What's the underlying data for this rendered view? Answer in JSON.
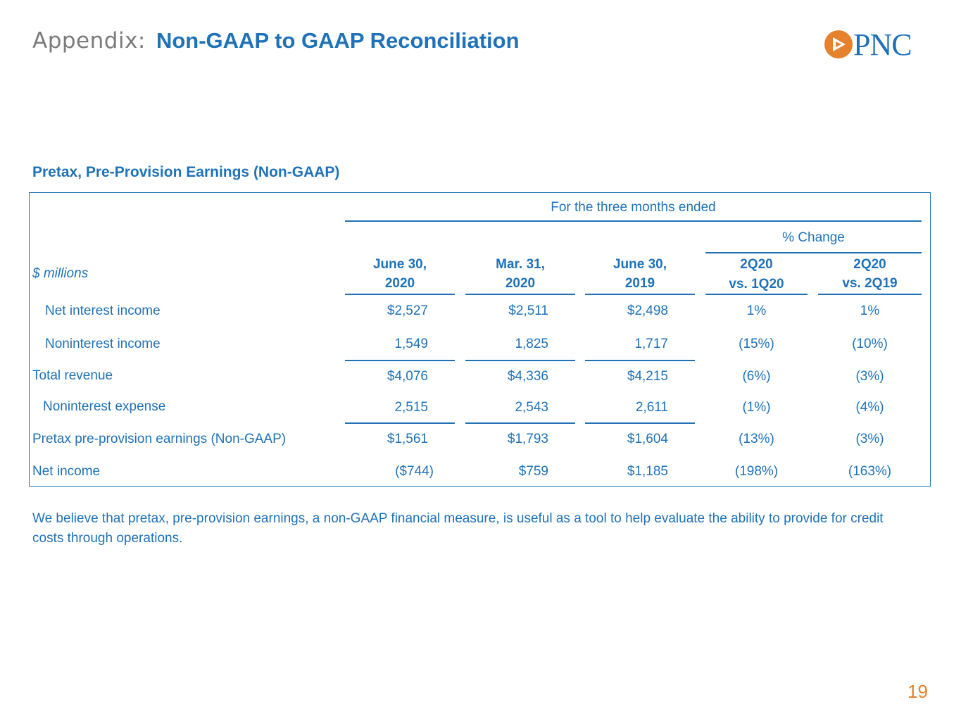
{
  "header": {
    "prefix": "Appendix:",
    "title": "Non-GAAP to GAAP Reconciliation",
    "logo_text": "PNC",
    "logo_icon": "pnc-triangle-logo-icon"
  },
  "colors": {
    "brand_blue": "#1f72b8",
    "brand_orange": "#e6822e",
    "gray": "#7b7b7b"
  },
  "section": {
    "title": "Pretax, Pre-Provision Earnings  (Non-GAAP)"
  },
  "table": {
    "period_header": "For the three months ended",
    "change_header": "% Change",
    "units_label": "$ millions",
    "columns": [
      {
        "line1": "June 30,",
        "line2": "2020"
      },
      {
        "line1": "Mar. 31,",
        "line2": "2020"
      },
      {
        "line1": "June 30,",
        "line2": "2019"
      },
      {
        "line1": "2Q20",
        "line2": "vs. 1Q20"
      },
      {
        "line1": "2Q20",
        "line2": "vs. 2Q19"
      }
    ],
    "rows": [
      {
        "label": "Net interest income",
        "v1": "$2,527",
        "v2": "$2,511",
        "v3": "$2,498",
        "p1": "1%",
        "p2": "1%"
      },
      {
        "label": "Noninterest income",
        "v1": "1,549",
        "v2": "1,825",
        "v3": "1,717",
        "p1": "(15%)",
        "p2": "(10%)"
      },
      {
        "label": "Total revenue",
        "v1": "$4,076",
        "v2": "$4,336",
        "v3": "$4,215",
        "p1": "(6%)",
        "p2": "(3%)"
      },
      {
        "label": "Noninterest expense",
        "v1": "2,515",
        "v2": "2,543",
        "v3": "2,611",
        "p1": "(1%)",
        "p2": "(4%)"
      },
      {
        "label": "Pretax pre-provision earnings (Non-GAAP)",
        "v1": "$1,561",
        "v2": "$1,793",
        "v3": "$1,604",
        "p1": "(13%)",
        "p2": "(3%)"
      },
      {
        "label": "Net income",
        "v1": "($744)",
        "v2": "$759",
        "v3": "$1,185",
        "p1": "(198%)",
        "p2": "(163%)"
      }
    ]
  },
  "note": "We believe that pretax, pre-provision earnings, a non-GAAP financial measure, is useful as a tool to help evaluate the ability to provide for credit costs through operations.",
  "page_number": "19"
}
